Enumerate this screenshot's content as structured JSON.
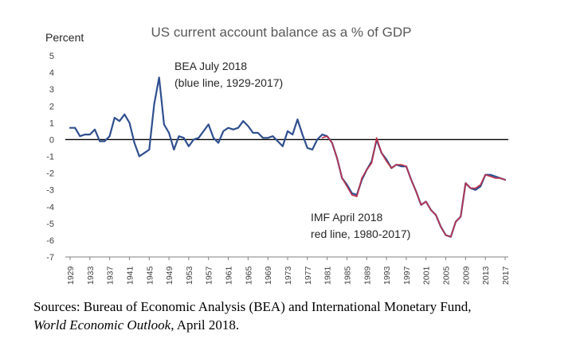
{
  "chart_data": {
    "type": "line",
    "title": "US current account balance as a % of GDP",
    "ylabel": "Percent",
    "ylim": [
      -7,
      5
    ],
    "yticks": [
      5,
      4,
      3,
      2,
      1,
      0,
      -1,
      -2,
      -3,
      -4,
      -5,
      -6,
      -7
    ],
    "xlim": [
      1929,
      2017
    ],
    "xticks": [
      1929,
      1933,
      1937,
      1941,
      1945,
      1949,
      1953,
      1957,
      1961,
      1965,
      1969,
      1973,
      1977,
      1981,
      1985,
      1989,
      1993,
      1997,
      2001,
      2005,
      2009,
      2013,
      2017
    ],
    "zero_line": true,
    "grid": false,
    "annotations": [
      {
        "lines": [
          "BEA July 2018",
          "(blue line, 1929-2017)"
        ]
      },
      {
        "lines": [
          "IMF April 2018",
          "red line, 1980-2017)"
        ]
      }
    ],
    "series": [
      {
        "color": "#2f4f8f",
        "x": [
          1929,
          1930,
          1931,
          1932,
          1933,
          1934,
          1935,
          1936,
          1937,
          1938,
          1939,
          1940,
          1941,
          1942,
          1943,
          1944,
          1945,
          1946,
          1947,
          1948,
          1949,
          1950,
          1951,
          1952,
          1953,
          1954,
          1955,
          1956,
          1957,
          1958,
          1959,
          1960,
          1961,
          1962,
          1963,
          1964,
          1965,
          1966,
          1967,
          1968,
          1969,
          1970,
          1971,
          1972,
          1973,
          1974,
          1975,
          1976,
          1977,
          1978,
          1979,
          1980,
          1981,
          1982,
          1983,
          1984,
          1985,
          1986,
          1987,
          1988,
          1989,
          1990,
          1991,
          1992,
          1993,
          1994,
          1995,
          1996,
          1997,
          1998,
          1999,
          2000,
          2001,
          2002,
          2003,
          2004,
          2005,
          2006,
          2007,
          2008,
          2009,
          2010,
          2011,
          2012,
          2013,
          2014,
          2015,
          2016,
          2017
        ],
        "values": [
          0.7,
          0.7,
          0.2,
          0.3,
          0.3,
          0.6,
          -0.1,
          -0.1,
          0.2,
          1.3,
          1.1,
          1.5,
          1.0,
          -0.2,
          -1.0,
          -0.8,
          -0.6,
          2.1,
          3.7,
          0.9,
          0.4,
          -0.6,
          0.2,
          0.1,
          -0.4,
          0.0,
          0.1,
          0.5,
          0.9,
          0.1,
          -0.2,
          0.5,
          0.7,
          0.6,
          0.7,
          1.1,
          0.8,
          0.4,
          0.4,
          0.1,
          0.1,
          0.2,
          -0.1,
          -0.4,
          0.5,
          0.3,
          1.2,
          0.3,
          -0.5,
          -0.6,
          0.0,
          0.3,
          0.2,
          -0.2,
          -1.1,
          -2.3,
          -2.7,
          -3.2,
          -3.3,
          -2.4,
          -1.8,
          -1.3,
          0.0,
          -0.8,
          -1.2,
          -1.7,
          -1.5,
          -1.6,
          -1.6,
          -2.4,
          -3.1,
          -3.9,
          -3.7,
          -4.2,
          -4.5,
          -5.2,
          -5.7,
          -5.8,
          -4.9,
          -4.6,
          -2.6,
          -2.9,
          -3.0,
          -2.8,
          -2.1,
          -2.1,
          -2.2,
          -2.3,
          -2.4
        ]
      },
      {
        "color": "#c0304a",
        "x": [
          1980,
          1981,
          1982,
          1983,
          1984,
          1985,
          1986,
          1987,
          1988,
          1989,
          1990,
          1991,
          1992,
          1993,
          1994,
          1995,
          1996,
          1997,
          1998,
          1999,
          2000,
          2001,
          2002,
          2003,
          2004,
          2005,
          2006,
          2007,
          2008,
          2009,
          2010,
          2011,
          2012,
          2013,
          2014,
          2015,
          2016,
          2017
        ],
        "values": [
          0.1,
          0.2,
          -0.2,
          -1.1,
          -2.3,
          -2.8,
          -3.3,
          -3.4,
          -2.3,
          -1.8,
          -1.4,
          0.1,
          -0.8,
          -1.3,
          -1.7,
          -1.5,
          -1.5,
          -1.6,
          -2.4,
          -3.1,
          -3.9,
          -3.7,
          -4.2,
          -4.5,
          -5.2,
          -5.7,
          -5.8,
          -4.9,
          -4.6,
          -2.6,
          -2.9,
          -2.9,
          -2.7,
          -2.1,
          -2.2,
          -2.3,
          -2.3,
          -2.4
        ]
      }
    ]
  },
  "source_note": {
    "line1": "Sources: Bureau of Economic Analysis (BEA) and International Monetary Fund,",
    "line2_italic": "World Economic Outlook",
    "line2_rest": ", April 2018."
  }
}
